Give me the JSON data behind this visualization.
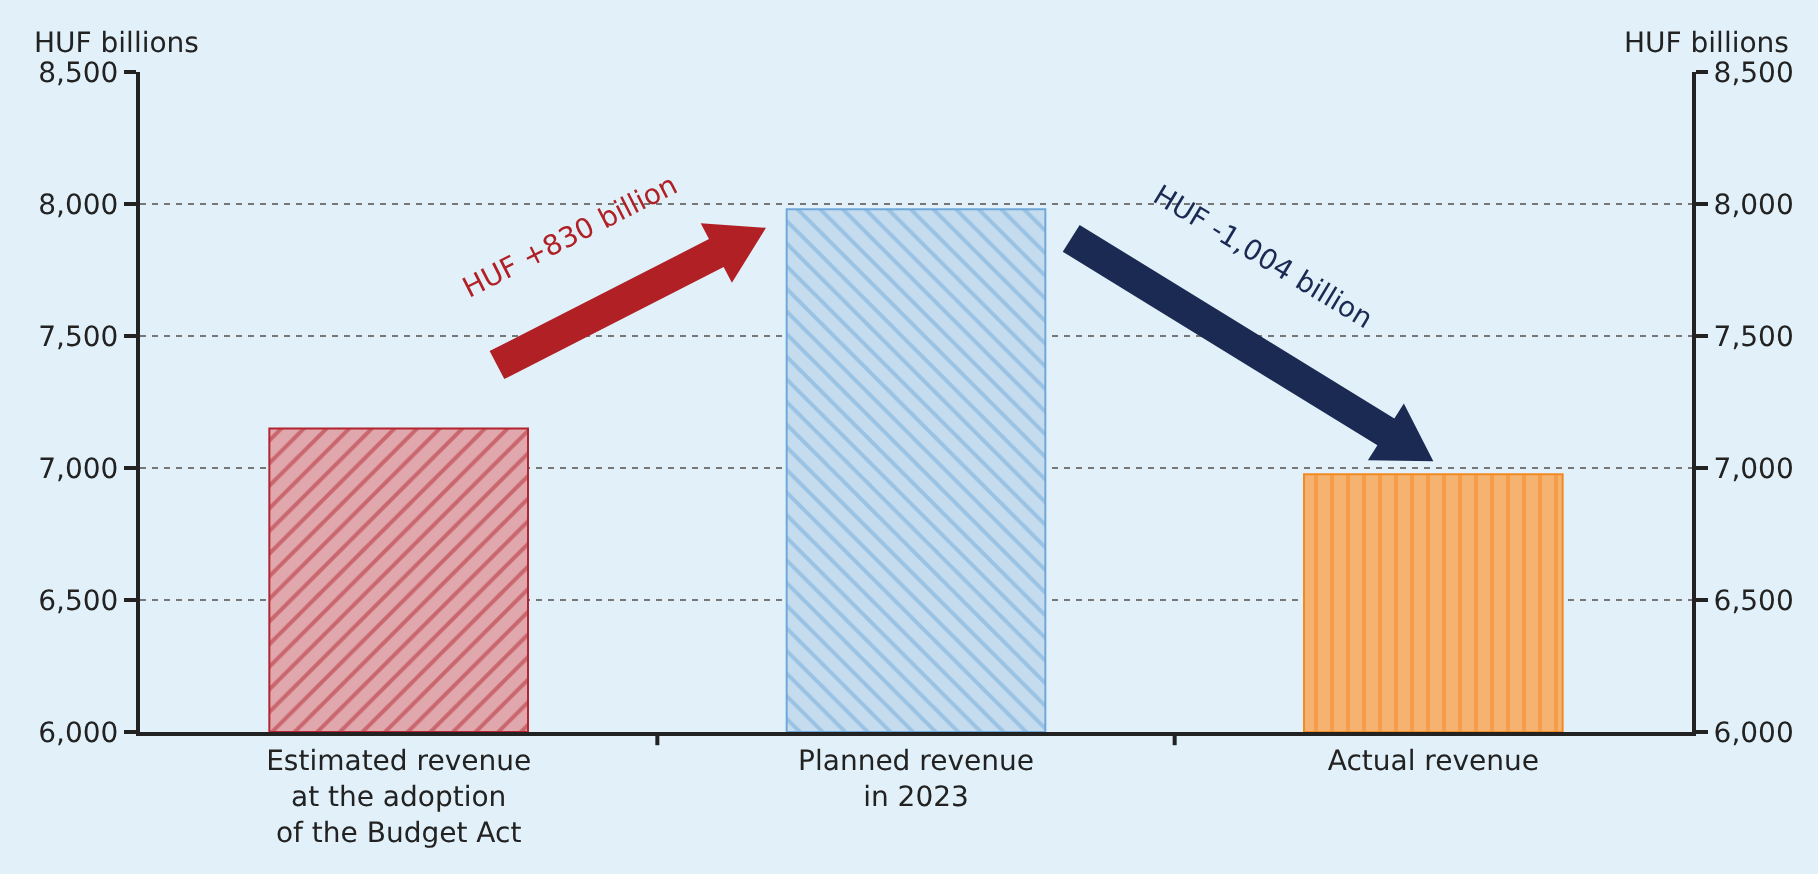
{
  "chart_data": {
    "type": "bar",
    "categories": [
      "Estimated revenue\nat the adoption\nof the Budget Act",
      "Planned revenue\nin 2023",
      "Actual revenue"
    ],
    "values": [
      7150,
      7980,
      6976
    ],
    "colors": [
      "#b22530",
      "#6fa8d8",
      "#f28a24"
    ],
    "ylabel": "HUF billions",
    "y2label": "HUF billions",
    "ylim": [
      6000,
      8500
    ],
    "yticks": [
      {
        "value": 6000,
        "label": "6,000"
      },
      {
        "value": 6500,
        "label": "6,500"
      },
      {
        "value": 7000,
        "label": "7,000"
      },
      {
        "value": 7500,
        "label": "7,500"
      },
      {
        "value": 8000,
        "label": "8,000"
      },
      {
        "value": 8500,
        "label": "8,500"
      }
    ],
    "y2lim": [
      6000,
      8500
    ],
    "y2ticks": [
      {
        "value": 6000,
        "label": "6,000"
      },
      {
        "value": 6500,
        "label": "6,500"
      },
      {
        "value": 7000,
        "label": "7,000"
      },
      {
        "value": 7500,
        "label": "7,500"
      },
      {
        "value": 8000,
        "label": "8,000"
      },
      {
        "value": 8500,
        "label": "8,500"
      }
    ],
    "annotations": [
      "HUF +830 billion",
      "HUF -1,004 billion"
    ],
    "grid": "y"
  }
}
